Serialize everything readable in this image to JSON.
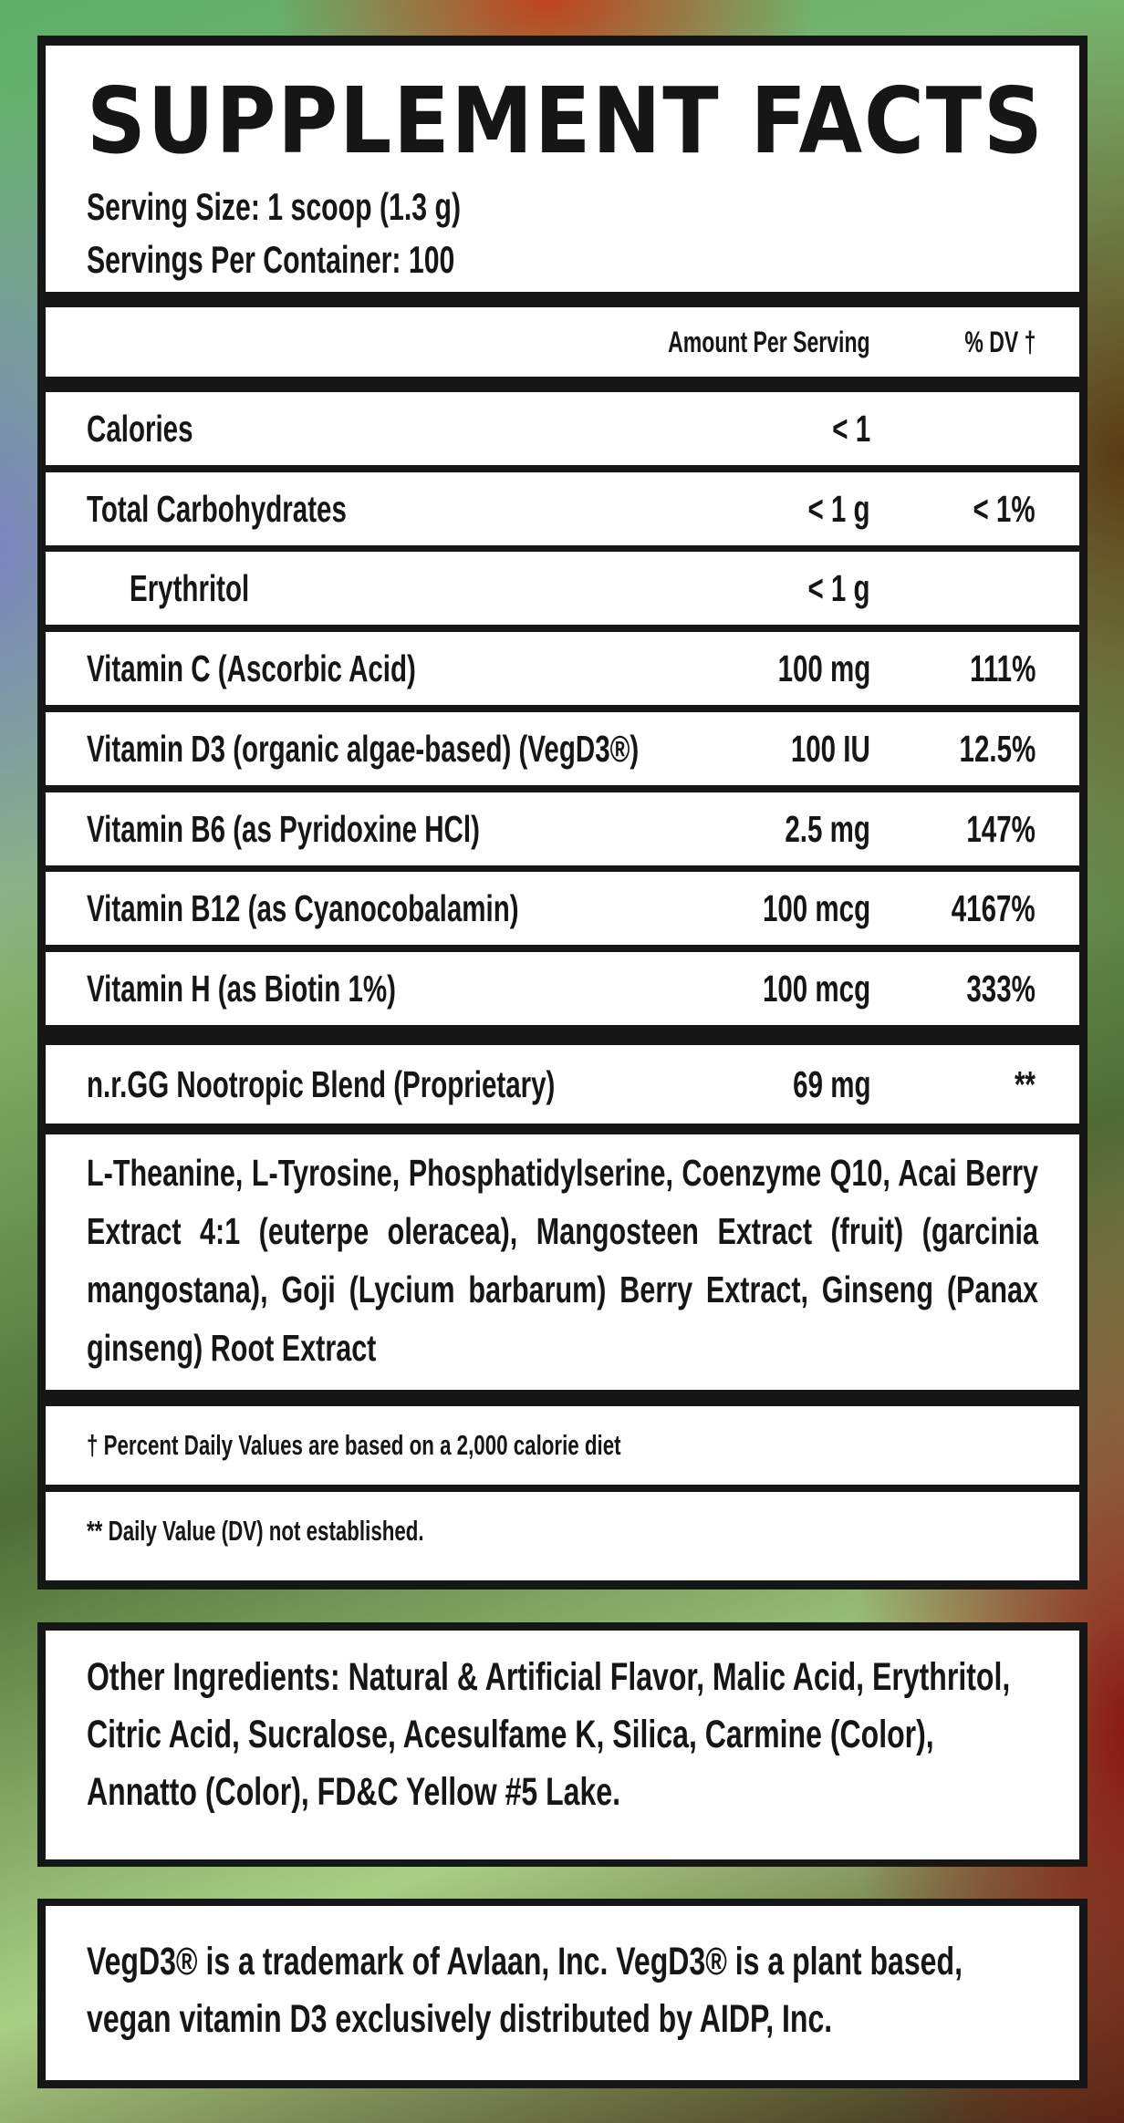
{
  "facts": {
    "title": "SUPPLEMENT FACTS",
    "serving_size": "Serving Size: 1 scoop (1.3 g)",
    "servings_per_container": "Servings Per Container: 100",
    "header": {
      "amount": "Amount Per Serving",
      "dv": "% DV †"
    },
    "rows": [
      {
        "name": "Calories",
        "amount": "< 1",
        "dv": ""
      },
      {
        "name": "Total Carbohydrates",
        "amount": "< 1 g",
        "dv": "< 1%"
      },
      {
        "name": "Erythritol",
        "amount": "< 1 g",
        "dv": ""
      },
      {
        "name": "Vitamin C (Ascorbic Acid)",
        "amount": "100 mg",
        "dv": "111%"
      },
      {
        "name": "Vitamin D3 (organic algae-based) (VegD3®)",
        "amount": "100 IU",
        "dv": "12.5%"
      },
      {
        "name": "Vitamin B6 (as Pyridoxine HCl)",
        "amount": "2.5 mg",
        "dv": "147%"
      },
      {
        "name": "Vitamin B12 (as Cyanocobalamin)",
        "amount": "100 mcg",
        "dv": "4167%"
      },
      {
        "name": "Vitamin H (as Biotin 1%)",
        "amount": "100 mcg",
        "dv": "333%"
      }
    ],
    "blend": {
      "name": "n.r.GG Nootropic Blend (Proprietary)",
      "amount": "69 mg",
      "dv": "**"
    },
    "blend_ingredients": "L-Theanine, L-Tyrosine, Phosphatidylserine, Coenzyme Q10, Acai Berry Extract 4:1 (euterpe oleracea), Mangosteen Extract (fruit) (garcinia mangostana), Goji (Lycium barbarum) Berry Extract, Ginseng (Panax ginseng) Root Extract",
    "footnote_dv": "† Percent Daily Values are based on a 2,000 calorie diet",
    "footnote_na": "** Daily Value (DV) not established."
  },
  "other_ingredients": "Other Ingredients: Natural & Artificial Flavor, Malic Acid, Erythritol, Citric Acid, Sucralose, Acesulfame K, Silica, Carmine (Color), Annatto (Color), FD&C Yellow #5 Lake.",
  "trademark": "VegD3® is a trademark of Avlaan, Inc. VegD3® is a plant based, vegan vitamin D3 exclusively distributed by AIDP, Inc."
}
